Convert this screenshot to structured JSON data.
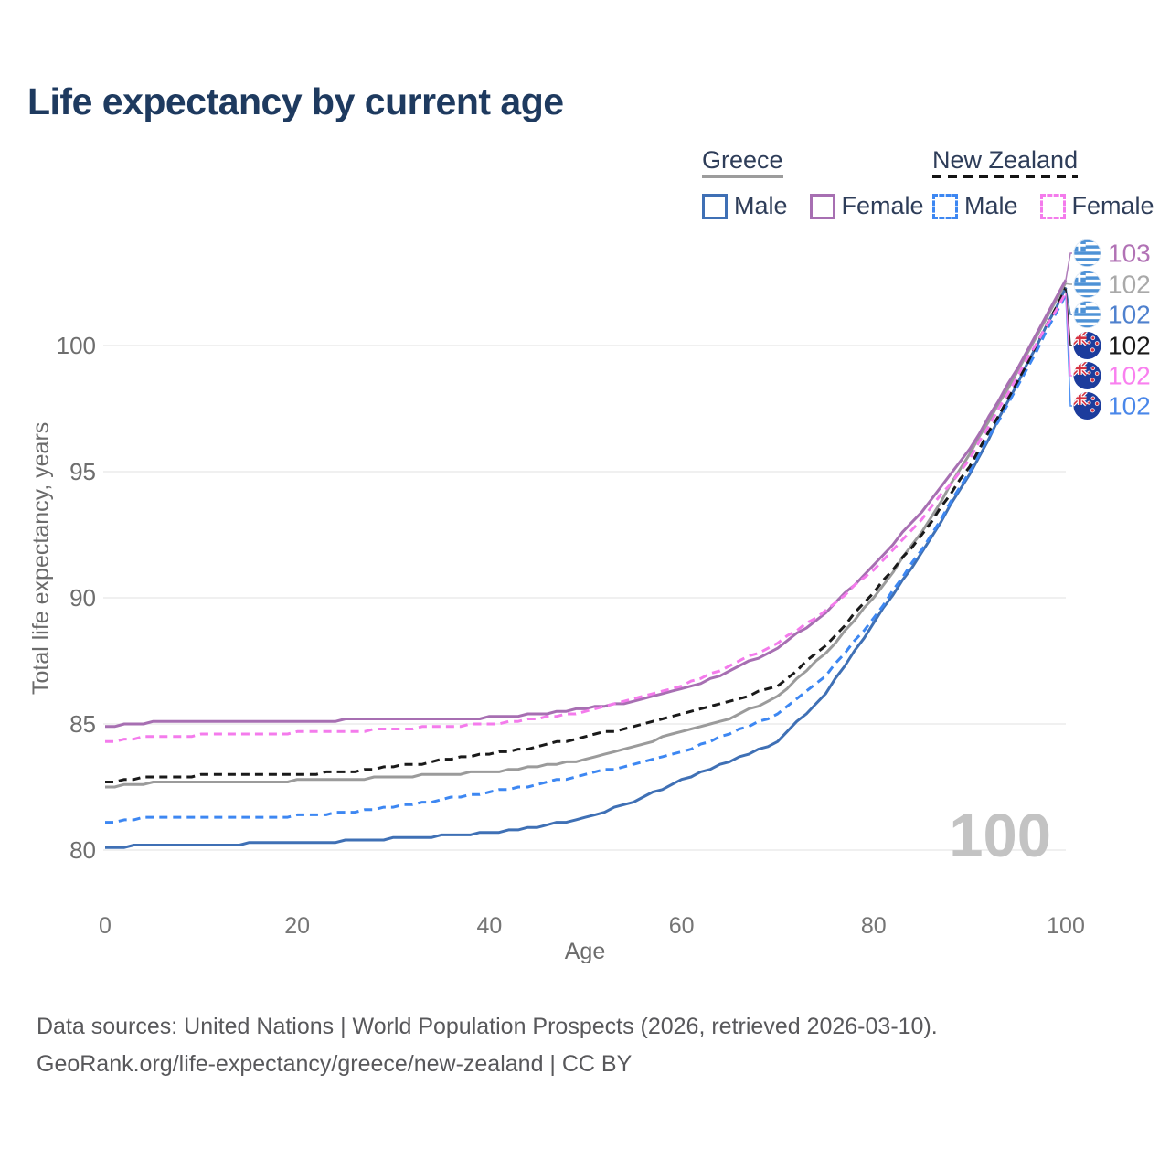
{
  "title": "Life expectancy by current age",
  "watermark": {
    "text": "100"
  },
  "legend": {
    "groups": [
      {
        "country": "Greece",
        "style": "solid",
        "underline_color": "#9c9c9c",
        "items": [
          {
            "label": "Male",
            "color": "#3f70b5"
          },
          {
            "label": "Female",
            "color": "#a76fb2"
          }
        ]
      },
      {
        "country": "New Zealand",
        "style": "dashed",
        "underline_color": "#141414",
        "items": [
          {
            "label": "Male",
            "color": "#3d87f2"
          },
          {
            "label": "Female",
            "color": "#f47bec"
          }
        ]
      }
    ]
  },
  "chart_data": {
    "type": "line",
    "title": "Life expectancy by current age",
    "xlabel": "Age",
    "ylabel": "Total life expectancy, years",
    "xlim": [
      0,
      100
    ],
    "ylim": [
      79.5,
      103.5
    ],
    "xticks": [
      0,
      20,
      40,
      60,
      80,
      100
    ],
    "yticks": [
      80,
      85,
      90,
      95,
      100
    ],
    "grid": true,
    "legend_position": "top-right",
    "x": [
      0,
      5,
      10,
      15,
      20,
      25,
      30,
      35,
      40,
      45,
      50,
      55,
      60,
      65,
      70,
      75,
      80,
      85,
      90,
      95,
      100
    ],
    "series": [
      {
        "name": "Greece Male",
        "country": "Greece",
        "flag": "gr",
        "dash": "solid",
        "color": "#3f70b5",
        "end_label": "102",
        "end_label_color": "#4f81ce",
        "end_label_row": 2,
        "values": [
          80.1,
          80.2,
          80.2,
          80.25,
          80.3,
          80.35,
          80.45,
          80.55,
          80.7,
          80.9,
          81.3,
          81.9,
          82.8,
          83.5,
          84.3,
          86.2,
          89.0,
          91.8,
          94.9,
          98.5,
          102.3
        ]
      },
      {
        "name": "Greece",
        "country": "Greece",
        "flag": "gr",
        "dash": "solid",
        "color": "#9b9b9b",
        "end_label": "102",
        "end_label_color": "#a9a9a9",
        "end_label_row": 1,
        "values": [
          82.5,
          82.65,
          82.7,
          82.7,
          82.75,
          82.8,
          82.9,
          83.0,
          83.1,
          83.3,
          83.6,
          84.1,
          84.7,
          85.2,
          86.1,
          87.8,
          90.0,
          92.6,
          95.7,
          99.0,
          102.45
        ]
      },
      {
        "name": "Greece Female",
        "country": "Greece",
        "flag": "gr",
        "dash": "solid",
        "color": "#a76fb2",
        "end_label": "103",
        "end_label_color": "#b172b5",
        "end_label_row": 0,
        "values": [
          84.9,
          85.05,
          85.1,
          85.1,
          85.1,
          85.15,
          85.2,
          85.2,
          85.25,
          85.4,
          85.6,
          85.9,
          86.35,
          87.1,
          88.0,
          89.4,
          91.3,
          93.4,
          95.9,
          99.1,
          102.6
        ]
      },
      {
        "name": "New Zealand Male",
        "country": "New Zealand",
        "flag": "nz",
        "dash": "dashed",
        "color": "#3d87f2",
        "end_label": "102",
        "end_label_color": "#4a87e9",
        "end_label_row": 5,
        "values": [
          81.1,
          81.3,
          81.3,
          81.3,
          81.35,
          81.5,
          81.7,
          82.0,
          82.3,
          82.6,
          83.0,
          83.4,
          83.9,
          84.6,
          85.4,
          86.9,
          89.2,
          91.9,
          95.0,
          98.4,
          102.0
        ]
      },
      {
        "name": "New Zealand",
        "country": "New Zealand",
        "flag": "nz",
        "dash": "dashed",
        "color": "#1a1a1a",
        "end_label": "102",
        "end_label_color": "#1a1a1a",
        "end_label_row": 3,
        "values": [
          82.7,
          82.9,
          82.95,
          83.0,
          83.0,
          83.1,
          83.3,
          83.55,
          83.8,
          84.1,
          84.5,
          84.9,
          85.4,
          85.9,
          86.5,
          88.1,
          90.2,
          92.5,
          95.2,
          98.6,
          102.25
        ]
      },
      {
        "name": "New Zealand Female",
        "country": "New Zealand",
        "flag": "nz",
        "dash": "dashed",
        "color": "#f47bec",
        "end_label": "102",
        "end_label_color": "#f980ef",
        "end_label_row": 4,
        "values": [
          84.3,
          84.5,
          84.55,
          84.6,
          84.65,
          84.7,
          84.8,
          84.9,
          85.0,
          85.2,
          85.5,
          85.95,
          86.5,
          87.3,
          88.2,
          89.5,
          91.1,
          93.1,
          95.5,
          98.8,
          102.1
        ]
      }
    ]
  },
  "footer": {
    "line1": "Data sources: United Nations | World Population Prospects (2026, retrieved 2026-03-10).",
    "line2": "GeoRank.org/life-expectancy/greece/new-zealand | CC BY"
  }
}
